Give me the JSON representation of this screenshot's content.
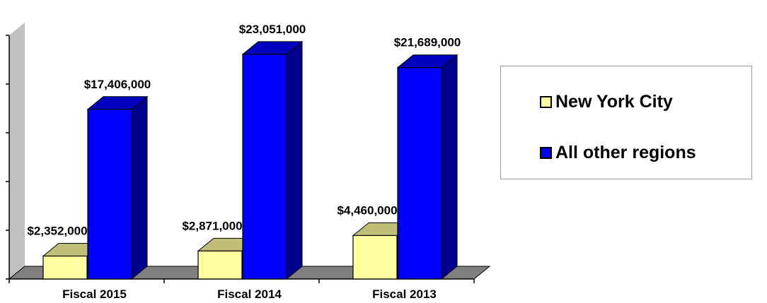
{
  "chart_data": {
    "type": "bar",
    "categories": [
      "Fiscal 2015",
      "Fiscal 2014",
      "Fiscal 2013"
    ],
    "series": [
      {
        "name": "New York City",
        "values": [
          2352000,
          2871000,
          4460000
        ],
        "labels": [
          "$2,352,000",
          "$2,871,000",
          "$4,460,000"
        ],
        "color": "#ffffa0"
      },
      {
        "name": "All other regions",
        "values": [
          17406000,
          23051000,
          21689000
        ],
        "labels": [
          "$17,406,000",
          "$23,051,000",
          "$21,689,000"
        ],
        "color": "#0000ff"
      }
    ],
    "ylim": [
      0,
      25000000
    ],
    "grid": false,
    "legend_position": "right",
    "style": "3d-column"
  }
}
